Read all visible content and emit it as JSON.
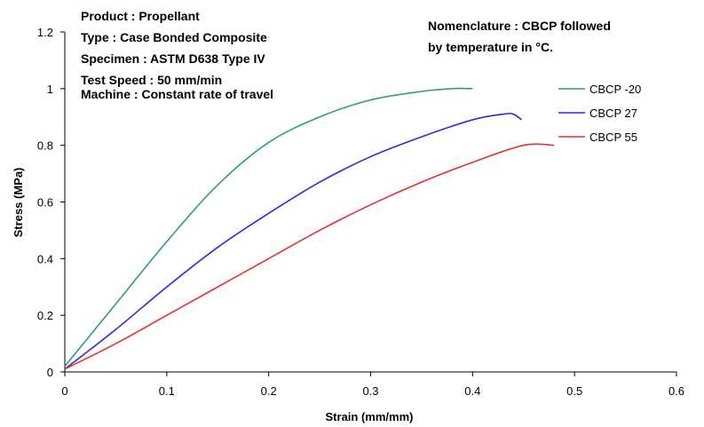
{
  "chart_data": {
    "type": "line",
    "xlabel": "Strain (mm/mm)",
    "ylabel": "Stress (MPa)",
    "xlim": [
      0,
      0.6
    ],
    "ylim": [
      0,
      1.2
    ],
    "xticks": [
      "0",
      "0.1",
      "0.2",
      "0.3",
      "0.4",
      "0.5",
      "0.6"
    ],
    "yticks": [
      "0",
      "0.2",
      "0.4",
      "0.6",
      "0.8",
      "1",
      "1.2"
    ],
    "grid": false,
    "legend_position": "right",
    "info_lines": [
      "Product : Propellant",
      "Type : Case Bonded Composite",
      "Specimen : ASTM D638 Type IV",
      "Test Speed : 50 mm/min",
      "Machine : Constant rate of travel"
    ],
    "nomenclature_lines": [
      "Nomenclature : CBCP followed",
      "by temperature in °C."
    ],
    "series": [
      {
        "name": "CBCP -20",
        "color": "#2e9b8a",
        "x": [
          0,
          0.05,
          0.1,
          0.15,
          0.2,
          0.25,
          0.3,
          0.35,
          0.38,
          0.4
        ],
        "y": [
          0.02,
          0.24,
          0.46,
          0.66,
          0.81,
          0.9,
          0.96,
          0.99,
          1.0,
          1.0
        ]
      },
      {
        "name": "CBCP 27",
        "color": "#2a2ae6",
        "x": [
          0,
          0.05,
          0.1,
          0.15,
          0.2,
          0.25,
          0.3,
          0.35,
          0.4,
          0.43,
          0.44,
          0.448
        ],
        "y": [
          0.01,
          0.15,
          0.3,
          0.44,
          0.56,
          0.67,
          0.76,
          0.83,
          0.89,
          0.91,
          0.91,
          0.89
        ]
      },
      {
        "name": "CBCP 55",
        "color": "#e83030",
        "x": [
          0,
          0.05,
          0.1,
          0.15,
          0.2,
          0.25,
          0.3,
          0.35,
          0.4,
          0.45,
          0.48
        ],
        "y": [
          0.01,
          0.1,
          0.2,
          0.3,
          0.4,
          0.5,
          0.59,
          0.67,
          0.74,
          0.8,
          0.8
        ]
      }
    ]
  }
}
